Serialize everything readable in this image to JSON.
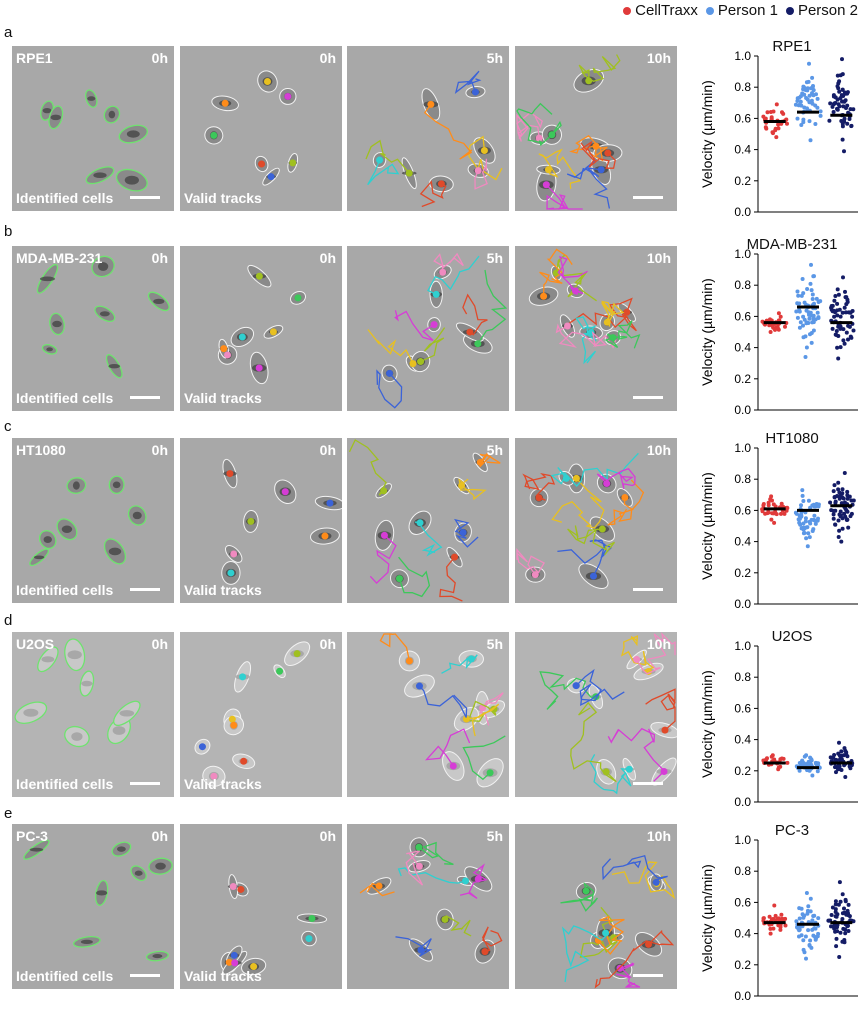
{
  "legend": [
    {
      "label": "CellTraxx",
      "color": "#e03a3a"
    },
    {
      "label": "Person 1",
      "color": "#5b97e6"
    },
    {
      "label": "Person 2",
      "color": "#141c66"
    }
  ],
  "image_labels": {
    "identified": "Identified cells",
    "valid": "Valid tracks",
    "t0": "0h",
    "t5": "5h",
    "t10": "10h"
  },
  "panels": [
    {
      "letter": "a",
      "cell_line": "RPE1"
    },
    {
      "letter": "b",
      "cell_line": "MDA-MB-231"
    },
    {
      "letter": "c",
      "cell_line": "HT1080"
    },
    {
      "letter": "d",
      "cell_line": "U2OS"
    },
    {
      "letter": "e",
      "cell_line": "PC-3"
    }
  ],
  "chart_data": [
    {
      "type": "scatter",
      "title": "RPE1",
      "ylabel": "Velocity (µm/min)",
      "ylim": [
        0,
        1.0
      ],
      "yticks": [
        "0.0",
        "0.2",
        "0.4",
        "0.6",
        "0.8",
        "1.0"
      ],
      "xlabel": "",
      "series": [
        {
          "name": "CellTraxx",
          "mean": 0.58,
          "min": 0.48,
          "max": 0.69,
          "n": 30
        },
        {
          "name": "Person 1",
          "mean": 0.64,
          "min": 0.46,
          "max": 0.95,
          "n": 55
        },
        {
          "name": "Person 2",
          "mean": 0.62,
          "min": 0.39,
          "max": 0.98,
          "n": 60
        }
      ]
    },
    {
      "type": "scatter",
      "title": "MDA-MB-231",
      "ylabel": "Velocity (µm/min)",
      "ylim": [
        0,
        1.0
      ],
      "yticks": [
        "0.0",
        "0.2",
        "0.4",
        "0.6",
        "0.8",
        "1.0"
      ],
      "xlabel": "",
      "series": [
        {
          "name": "CellTraxx",
          "mean": 0.56,
          "min": 0.5,
          "max": 0.62,
          "n": 30
        },
        {
          "name": "Person 1",
          "mean": 0.66,
          "min": 0.34,
          "max": 0.93,
          "n": 60
        },
        {
          "name": "Person 2",
          "mean": 0.56,
          "min": 0.33,
          "max": 0.85,
          "n": 60
        }
      ]
    },
    {
      "type": "scatter",
      "title": "HT1080",
      "ylabel": "Velocity (µm/min)",
      "ylim": [
        0,
        1.0
      ],
      "yticks": [
        "0.0",
        "0.2",
        "0.4",
        "0.6",
        "0.8",
        "1.0"
      ],
      "xlabel": "",
      "series": [
        {
          "name": "CellTraxx",
          "mean": 0.61,
          "min": 0.52,
          "max": 0.69,
          "n": 35
        },
        {
          "name": "Person 1",
          "mean": 0.6,
          "min": 0.37,
          "max": 0.73,
          "n": 55
        },
        {
          "name": "Person 2",
          "mean": 0.63,
          "min": 0.4,
          "max": 0.84,
          "n": 60
        }
      ]
    },
    {
      "type": "scatter",
      "title": "U2OS",
      "ylabel": "Velocity (µm/min)",
      "ylim": [
        0,
        1.0
      ],
      "yticks": [
        "0.0",
        "0.2",
        "0.4",
        "0.6",
        "0.8",
        "1.0"
      ],
      "xlabel": "",
      "series": [
        {
          "name": "CellTraxx",
          "mean": 0.25,
          "min": 0.21,
          "max": 0.3,
          "n": 25
        },
        {
          "name": "Person 1",
          "mean": 0.22,
          "min": 0.17,
          "max": 0.3,
          "n": 45
        },
        {
          "name": "Person 2",
          "mean": 0.25,
          "min": 0.16,
          "max": 0.38,
          "n": 50
        }
      ]
    },
    {
      "type": "scatter",
      "title": "PC-3",
      "ylabel": "Velocity (µm/min)",
      "ylim": [
        0,
        1.0
      ],
      "yticks": [
        "0.0",
        "0.2",
        "0.4",
        "0.6",
        "0.8",
        "1.0"
      ],
      "xlabel": "",
      "series": [
        {
          "name": "CellTraxx",
          "mean": 0.47,
          "min": 0.4,
          "max": 0.58,
          "n": 35
        },
        {
          "name": "Person 1",
          "mean": 0.46,
          "min": 0.24,
          "max": 0.66,
          "n": 55
        },
        {
          "name": "Person 2",
          "mean": 0.47,
          "min": 0.25,
          "max": 0.73,
          "n": 60
        }
      ]
    }
  ]
}
